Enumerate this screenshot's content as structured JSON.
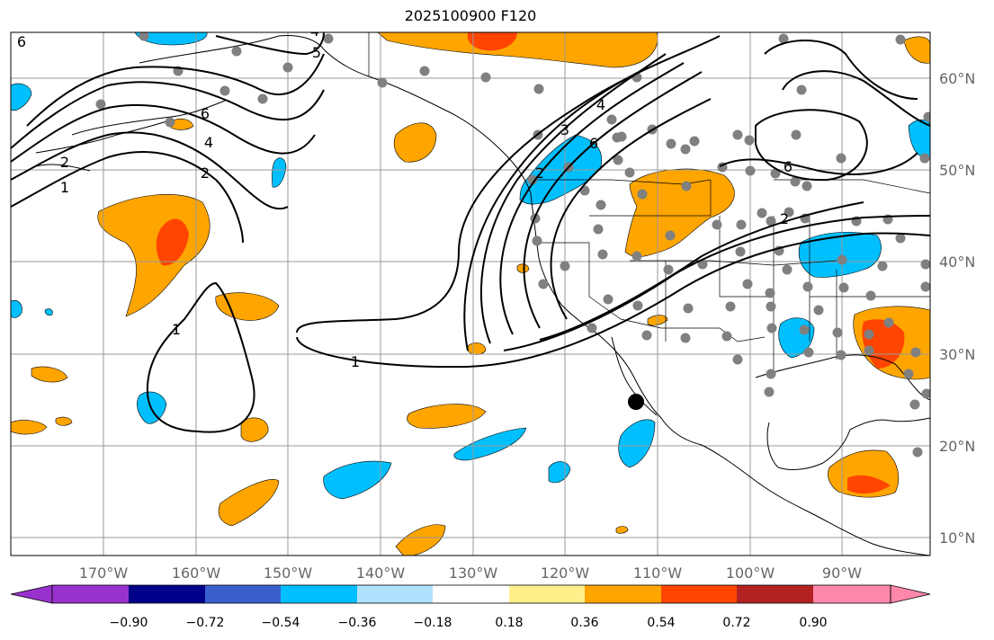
{
  "title": "2025100900 F120",
  "map": {
    "lon_labels": [
      "170°W",
      "160°W",
      "150°W",
      "140°W",
      "130°W",
      "120°W",
      "110°W",
      "100°W",
      "90°W"
    ],
    "lat_labels": [
      "60°N",
      "50°N",
      "40°N",
      "30°N",
      "20°N",
      "10°N"
    ],
    "contour_labels": [
      "1",
      "2",
      "3",
      "4",
      "5",
      "6",
      "1",
      "2",
      "4",
      "6",
      "2",
      "4",
      "6",
      "1",
      "2",
      "6"
    ],
    "colors": {
      "neg_strong": "#00bfff",
      "pos_mid": "#ffa500",
      "pos_strong": "#ff4500",
      "station": "#808080",
      "contour": "#000000",
      "grid": "#999999"
    }
  },
  "colorbar": {
    "tick_labels": [
      "−0.90",
      "−0.72",
      "−0.54",
      "−0.36",
      "−0.18",
      "0.18",
      "0.36",
      "0.54",
      "0.72",
      "0.90"
    ],
    "colors": [
      "#9932cc",
      "#00008b",
      "#3a5fcd",
      "#00bfff",
      "#b0e2ff",
      "#ffffff",
      "#fff08c",
      "#ffa500",
      "#ff4500",
      "#b22222",
      "#ff88aa"
    ]
  }
}
